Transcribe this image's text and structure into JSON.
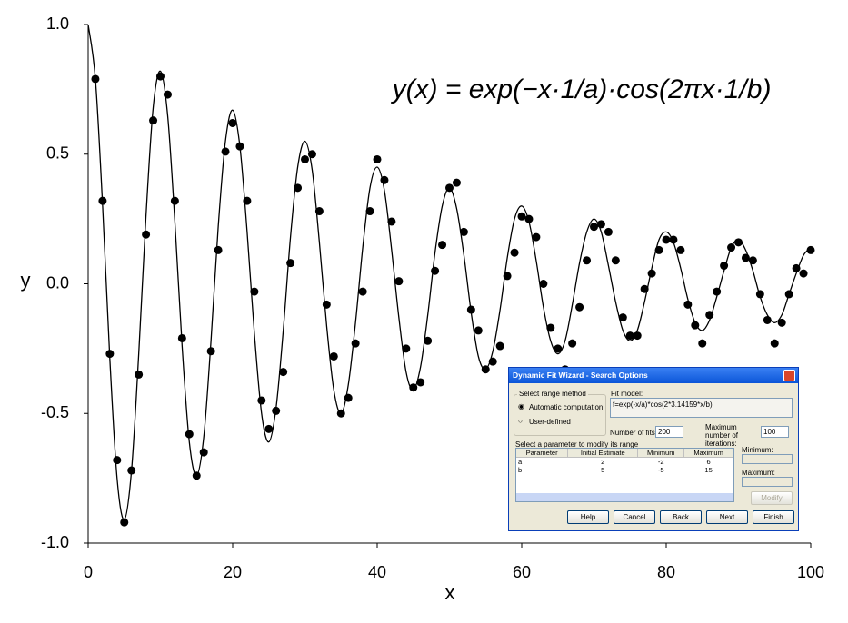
{
  "chart_data": {
    "type": "scatter",
    "annotation": "y(x) = exp(−x·1/a)·cos(2πx·1/b)",
    "xlabel": "x",
    "ylabel": "y",
    "xlim": [
      0,
      100
    ],
    "xticks": [
      0,
      20,
      40,
      60,
      80,
      100
    ],
    "ylim": [
      -1,
      1
    ],
    "yticks": [
      {
        "value": -1,
        "label": "-1.0"
      },
      {
        "value": -0.5,
        "label": "-0.5"
      },
      {
        "value": 0,
        "label": "0.0"
      },
      {
        "value": 0.5,
        "label": "0.5"
      },
      {
        "value": 1,
        "label": "1.0"
      }
    ],
    "series": [
      {
        "type": "line",
        "color": "#000000",
        "x": [
          0,
          1,
          2,
          3,
          4,
          5,
          6,
          7,
          8,
          9,
          10,
          11,
          12,
          13,
          14,
          15,
          16,
          17,
          18,
          19,
          20,
          21,
          22,
          23,
          24,
          25,
          26,
          27,
          28,
          29,
          30,
          31,
          32,
          33,
          34,
          35,
          36,
          37,
          38,
          39,
          40,
          41,
          42,
          43,
          44,
          45,
          46,
          47,
          48,
          49,
          50,
          51,
          52,
          53,
          54,
          55,
          56,
          57,
          58,
          59,
          60,
          61,
          62,
          63,
          64,
          65,
          66,
          67,
          68,
          69,
          70,
          71,
          72,
          73,
          74,
          75,
          76,
          77,
          78,
          79,
          80,
          81,
          82,
          83,
          84,
          85,
          86,
          87,
          88,
          89,
          90,
          91,
          92,
          93,
          94,
          95,
          96,
          97,
          98,
          99,
          100
        ],
        "values": [
          1.0,
          0.79,
          0.3,
          -0.29,
          -0.75,
          -0.91,
          -0.72,
          -0.27,
          0.26,
          0.68,
          0.82,
          0.65,
          0.24,
          -0.24,
          -0.61,
          -0.74,
          -0.59,
          -0.22,
          0.22,
          0.55,
          0.67,
          0.53,
          0.2,
          -0.19,
          -0.5,
          -0.61,
          -0.48,
          -0.18,
          0.18,
          0.45,
          0.55,
          0.44,
          0.16,
          -0.16,
          -0.41,
          -0.5,
          -0.39,
          -0.15,
          0.14,
          0.37,
          0.45,
          0.36,
          0.13,
          -0.13,
          -0.34,
          -0.41,
          -0.32,
          -0.12,
          0.12,
          0.3,
          0.37,
          0.29,
          0.11,
          -0.11,
          -0.28,
          -0.33,
          -0.26,
          -0.1,
          0.1,
          0.25,
          0.3,
          0.24,
          0.09,
          -0.09,
          -0.22,
          -0.27,
          -0.22,
          -0.08,
          0.08,
          0.2,
          0.25,
          0.2,
          0.07,
          -0.07,
          -0.18,
          -0.22,
          -0.18,
          -0.07,
          0.06,
          0.17,
          0.2,
          0.16,
          0.06,
          -0.06,
          -0.15,
          -0.18,
          -0.14,
          -0.05,
          0.05,
          0.14,
          0.17,
          0.13,
          0.05,
          -0.05,
          -0.12,
          -0.15,
          -0.12,
          -0.04,
          0.04,
          0.11,
          0.14
        ]
      },
      {
        "type": "scatter",
        "color": "#000000",
        "x": [
          1,
          2,
          3,
          4,
          5,
          6,
          7,
          8,
          9,
          10,
          11,
          12,
          13,
          14,
          15,
          16,
          17,
          18,
          19,
          20,
          21,
          22,
          23,
          24,
          25,
          26,
          27,
          28,
          29,
          30,
          31,
          32,
          33,
          34,
          35,
          36,
          37,
          38,
          39,
          40,
          41,
          42,
          43,
          44,
          45,
          46,
          47,
          48,
          49,
          50,
          51,
          52,
          53,
          54,
          55,
          56,
          57,
          58,
          59,
          60,
          61,
          62,
          63,
          64,
          65,
          66,
          67,
          68,
          69,
          70,
          71,
          72,
          73,
          74,
          75,
          76,
          77,
          78,
          79,
          80,
          81,
          82,
          83,
          84,
          85,
          86,
          87,
          88,
          89,
          90,
          91,
          92,
          93,
          94,
          95,
          96,
          97,
          98,
          99,
          100
        ],
        "values": [
          0.79,
          0.32,
          -0.27,
          -0.68,
          -0.92,
          -0.72,
          -0.35,
          0.19,
          0.63,
          0.8,
          0.73,
          0.32,
          -0.21,
          -0.58,
          -0.74,
          -0.65,
          -0.26,
          0.13,
          0.51,
          0.62,
          0.53,
          0.32,
          -0.03,
          -0.45,
          -0.56,
          -0.49,
          -0.34,
          0.08,
          0.37,
          0.48,
          0.5,
          0.28,
          -0.08,
          -0.28,
          -0.5,
          -0.44,
          -0.23,
          -0.03,
          0.28,
          0.48,
          0.4,
          0.24,
          0.01,
          -0.25,
          -0.4,
          -0.38,
          -0.22,
          0.05,
          0.15,
          0.37,
          0.39,
          0.2,
          -0.1,
          -0.18,
          -0.33,
          -0.3,
          -0.24,
          0.03,
          0.12,
          0.26,
          0.25,
          0.18,
          0.0,
          -0.17,
          -0.25,
          -0.33,
          -0.23,
          -0.09,
          0.09,
          0.22,
          0.23,
          0.2,
          0.09,
          -0.13,
          -0.2,
          -0.2,
          -0.02,
          0.04,
          0.13,
          0.17,
          0.17,
          0.13,
          -0.08,
          -0.16,
          -0.23,
          -0.12,
          -0.03,
          0.07,
          0.14,
          0.16,
          0.1,
          0.09,
          -0.04,
          -0.14,
          -0.23,
          -0.15,
          -0.04,
          0.06,
          0.04,
          0.13
        ]
      }
    ]
  },
  "dialog": {
    "title": "Dynamic Fit Wizard - Search Options",
    "range_group": "Select range method",
    "range_options": [
      "Automatic computation",
      "User-defined"
    ],
    "fit_model_label": "Fit model:",
    "fit_model": "f=exp(-x/a)*cos(2*3.14159*x/b)",
    "fits_label": "Number of fits:",
    "fits": 200,
    "iterations_label": "Maximum number of iterations:",
    "iterations": 100,
    "param_prompt": "Select a parameter to modify its range",
    "table": {
      "header": [
        "Parameter",
        "Initial Estimate",
        "Minimum",
        "Maximum"
      ],
      "rows": [
        [
          "a",
          2,
          -2,
          6
        ],
        [
          "b",
          5,
          -5,
          15
        ]
      ]
    },
    "min_label": "Minimum:",
    "max_label": "Maximum:",
    "modify": "Modify",
    "buttons": [
      "Help",
      "Cancel",
      "Back",
      "Next",
      "Finish"
    ]
  }
}
